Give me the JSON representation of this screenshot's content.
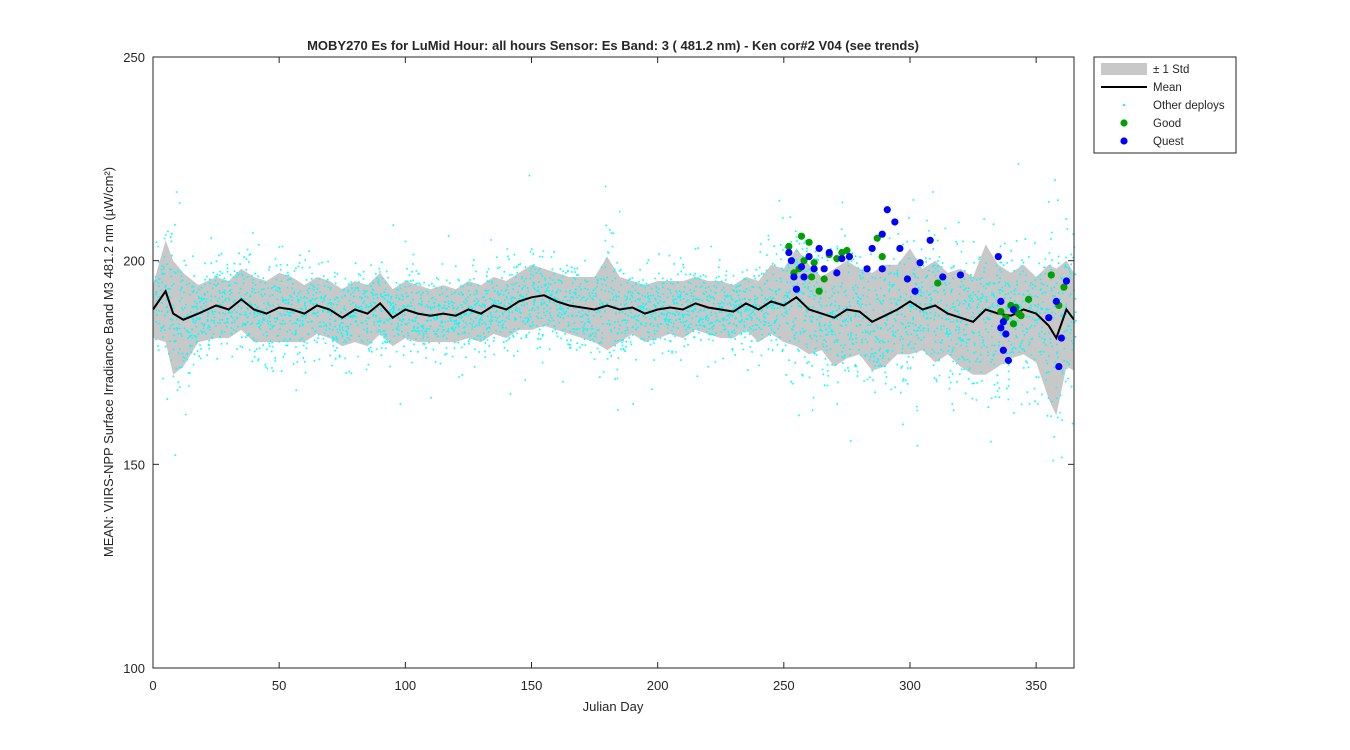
{
  "chart_data": {
    "type": "scatter",
    "title": "MOBY270   Es for LuMid  Hour: all hours  Sensor: Es Band: 3 ( 481.2 nm)  - Ken cor#2 V04 (see trends)",
    "xlabel": "Julian Day",
    "ylabel": "MEAN: VIIRS-NPP Surface Irradiance Band M3 481.2 nm (µW/cm²)",
    "xlim": [
      0,
      365
    ],
    "ylim": [
      100,
      250
    ],
    "xticks": [
      0,
      50,
      100,
      150,
      200,
      250,
      300,
      350
    ],
    "yticks": [
      100,
      150,
      200,
      250
    ],
    "xtick_labels": [
      "0",
      "50",
      "100",
      "150",
      "200",
      "250",
      "300",
      "350"
    ],
    "ytick_labels": [
      "100",
      "150",
      "200",
      "250"
    ],
    "grid": false,
    "legend_position": "outside top-right",
    "legend": [
      {
        "label": "± 1 Std",
        "kind": "band",
        "color": "#c8c8c8"
      },
      {
        "label": "Mean",
        "kind": "line",
        "color": "#000000"
      },
      {
        "label": "Other deploys",
        "kind": "dot",
        "color": "#00ffff"
      },
      {
        "label": "Good",
        "kind": "marker",
        "color": "#00a000"
      },
      {
        "label": "Quest",
        "kind": "marker",
        "color": "#0000ff"
      }
    ],
    "mean": {
      "x": [
        0,
        5,
        8,
        12,
        18,
        25,
        30,
        35,
        40,
        45,
        50,
        55,
        60,
        65,
        70,
        75,
        80,
        85,
        90,
        95,
        100,
        105,
        110,
        115,
        120,
        125,
        130,
        135,
        140,
        145,
        150,
        155,
        160,
        165,
        170,
        175,
        180,
        185,
        190,
        195,
        200,
        205,
        210,
        215,
        220,
        225,
        230,
        235,
        240,
        245,
        250,
        255,
        260,
        265,
        270,
        275,
        280,
        285,
        290,
        295,
        300,
        305,
        310,
        315,
        320,
        325,
        330,
        335,
        340,
        345,
        350,
        355,
        358,
        362,
        365
      ],
      "y": [
        188,
        192.5,
        187,
        185.5,
        187,
        189,
        188,
        190.5,
        188,
        187,
        188.5,
        188,
        187,
        189,
        188,
        186,
        188,
        187,
        189.5,
        186,
        188,
        187,
        186.5,
        187,
        186.5,
        188,
        187,
        189,
        188,
        190,
        191,
        191.5,
        190,
        189,
        188.5,
        188,
        189,
        188,
        188.5,
        187,
        188,
        188.5,
        188,
        189.5,
        188.5,
        188,
        187.5,
        189.5,
        188,
        190,
        189,
        191,
        188,
        187,
        186,
        188,
        187.5,
        185,
        186.5,
        188,
        190,
        188,
        189,
        187,
        186,
        185,
        188,
        187,
        186.5,
        188,
        187,
        184,
        181,
        188,
        185.5
      ]
    },
    "std": {
      "x": [
        0,
        5,
        8,
        12,
        18,
        25,
        30,
        35,
        40,
        45,
        50,
        55,
        60,
        65,
        70,
        75,
        80,
        85,
        90,
        95,
        100,
        105,
        110,
        115,
        120,
        125,
        130,
        135,
        140,
        145,
        150,
        155,
        160,
        165,
        170,
        175,
        180,
        185,
        190,
        195,
        200,
        205,
        210,
        215,
        220,
        225,
        230,
        235,
        240,
        245,
        250,
        255,
        260,
        265,
        270,
        275,
        280,
        285,
        290,
        295,
        300,
        305,
        310,
        315,
        320,
        325,
        330,
        335,
        340,
        345,
        350,
        355,
        358,
        362,
        365
      ],
      "upper": [
        194,
        205,
        200,
        197,
        194,
        196,
        195,
        198,
        196,
        195,
        197,
        196,
        194,
        196,
        195,
        193,
        195,
        194,
        197,
        193,
        195,
        194,
        193,
        194,
        193,
        195,
        194,
        196,
        195,
        197,
        199,
        198,
        197,
        196,
        196,
        196,
        201,
        196,
        195,
        194,
        195,
        195,
        195,
        196,
        195,
        195,
        194,
        196,
        195,
        199,
        198,
        203,
        199,
        196,
        198,
        200,
        198,
        197,
        199,
        199,
        203,
        198,
        200,
        197,
        198,
        196,
        204,
        199,
        197,
        199,
        196,
        199,
        198,
        200,
        197
      ],
      "lower": [
        181,
        180,
        172,
        174,
        180,
        181,
        181,
        183,
        180,
        180,
        180,
        180,
        180,
        182,
        181,
        179,
        180,
        179,
        182,
        179,
        181,
        180,
        180,
        180,
        180,
        181,
        180,
        182,
        181,
        183,
        183,
        184,
        183,
        182,
        181,
        180,
        178,
        180,
        182,
        180,
        181,
        182,
        181,
        183,
        182,
        181,
        181,
        183,
        180,
        182,
        180,
        179,
        177,
        178,
        174,
        176,
        177,
        173,
        174,
        177,
        177,
        178,
        175,
        177,
        174,
        172,
        172,
        174,
        176,
        177,
        175,
        166,
        162,
        174,
        173
      ]
    },
    "good": {
      "x": [
        252,
        254,
        256,
        257,
        258,
        260,
        261,
        262,
        264,
        266,
        268,
        271,
        273,
        275,
        287,
        289,
        311,
        336,
        338,
        340,
        341,
        342,
        343,
        344,
        347,
        356,
        359,
        361
      ],
      "y": [
        203.5,
        197,
        198,
        206,
        200,
        204.5,
        196,
        199.5,
        192.5,
        195.5,
        201.5,
        200.5,
        202,
        202.5,
        205.5,
        201,
        194.5,
        187.5,
        186,
        189,
        184.5,
        188.5,
        187,
        186.5,
        190.5,
        196.5,
        189,
        193.5
      ]
    },
    "quest": {
      "x": [
        252,
        253,
        254,
        255,
        257,
        258,
        260,
        262,
        264,
        266,
        268,
        271,
        273,
        276,
        283,
        285,
        289,
        289,
        291,
        294,
        296,
        299,
        302,
        304,
        308,
        313,
        320,
        335,
        336,
        336,
        337,
        337,
        338,
        339,
        341,
        355,
        358,
        359,
        360,
        362
      ],
      "y": [
        202,
        200,
        196,
        193,
        198.5,
        196,
        201,
        198,
        203,
        198,
        202,
        197,
        200.5,
        201,
        198,
        203,
        206.5,
        198,
        212.5,
        209.5,
        203,
        195.5,
        192.5,
        199.5,
        205,
        196,
        196.5,
        201,
        190,
        183.5,
        185,
        178,
        182,
        175.5,
        188,
        186,
        190,
        174,
        181,
        195
      ]
    },
    "other_deploys": {
      "count_estimate": "approx. 4400 single-day observations, mostly within 175-205"
    }
  }
}
